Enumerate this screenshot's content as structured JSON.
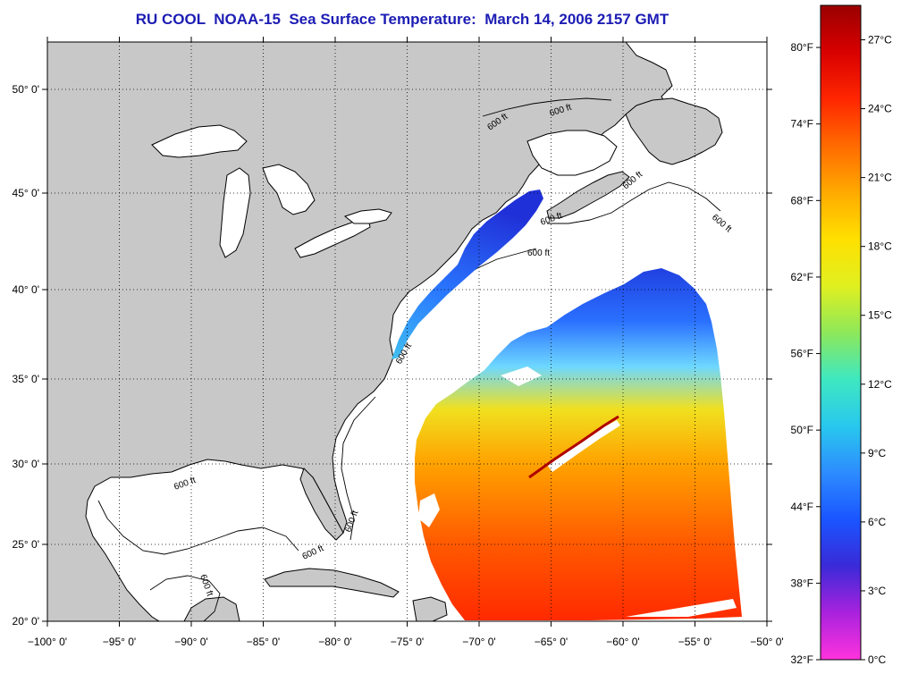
{
  "title": "RU COOL  NOAA-15  Sea Surface Temperature:  March 14, 2006 2157 GMT",
  "map": {
    "x_ticks": [
      {
        "lon": -100,
        "label": "−100° 0'"
      },
      {
        "lon": -95,
        "label": "−95° 0'"
      },
      {
        "lon": -90,
        "label": "−90° 0'"
      },
      {
        "lon": -85,
        "label": "−85° 0'"
      },
      {
        "lon": -80,
        "label": "−80° 0'"
      },
      {
        "lon": -75,
        "label": "−75° 0'"
      },
      {
        "lon": -70,
        "label": "−70° 0'"
      },
      {
        "lon": -65,
        "label": "−65° 0'"
      },
      {
        "lon": -60,
        "label": "−60° 0'"
      },
      {
        "lon": -55,
        "label": "−55° 0'"
      },
      {
        "lon": -50,
        "label": "−50° 0'"
      }
    ],
    "y_ticks": [
      {
        "lat": 20,
        "label": "20° 0'"
      },
      {
        "lat": 25,
        "label": "25° 0'"
      },
      {
        "lat": 30,
        "label": "30° 0'"
      },
      {
        "lat": 35,
        "label": "35° 0'"
      },
      {
        "lat": 40,
        "label": "40° 0'"
      },
      {
        "lat": 45,
        "label": "45° 0'"
      },
      {
        "lat": 50,
        "label": "50° 0'"
      }
    ],
    "contour_labels": [
      "600 ft",
      "600 ft",
      "600 ft",
      "600 ft",
      "600 ft",
      "600 ft",
      "600 ft",
      "600 ft",
      "600 ft",
      "600 ft",
      "600 ft"
    ],
    "colors": {
      "land": "#c8c8c8",
      "water": "#ffffff",
      "grid": "#000000"
    }
  },
  "colorbar": {
    "fahrenheit": [
      {
        "value": 32,
        "label": "32°F"
      },
      {
        "value": 38,
        "label": "38°F"
      },
      {
        "value": 44,
        "label": "44°F"
      },
      {
        "value": 50,
        "label": "50°F"
      },
      {
        "value": 56,
        "label": "56°F"
      },
      {
        "value": 62,
        "label": "62°F"
      },
      {
        "value": 68,
        "label": "68°F"
      },
      {
        "value": 74,
        "label": "74°F"
      },
      {
        "value": 80,
        "label": "80°F"
      }
    ],
    "celsius": [
      {
        "value": 0,
        "label": "0°C"
      },
      {
        "value": 3,
        "label": "3°C"
      },
      {
        "value": 6,
        "label": "6°C"
      },
      {
        "value": 9,
        "label": "9°C"
      },
      {
        "value": 12,
        "label": "12°C"
      },
      {
        "value": 15,
        "label": "15°C"
      },
      {
        "value": 18,
        "label": "18°C"
      },
      {
        "value": 21,
        "label": "21°C"
      },
      {
        "value": 24,
        "label": "24°C"
      },
      {
        "value": 27,
        "label": "27°C"
      }
    ],
    "range_c": [
      0,
      28.5
    ],
    "stops": [
      "#ff33dd",
      "#aa22dd",
      "#3a2ad8",
      "#1a55ff",
      "#2d8cff",
      "#28c8ee",
      "#3ee8c0",
      "#8ee85a",
      "#e0f020",
      "#ffe000",
      "#ffaa00",
      "#ff6a00",
      "#ff2600",
      "#d80000",
      "#9a0000"
    ]
  }
}
